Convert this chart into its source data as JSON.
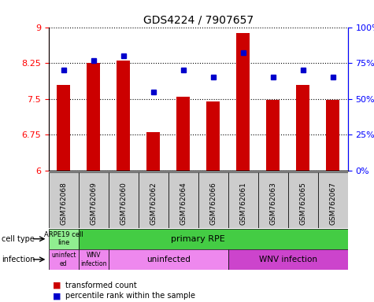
{
  "title": "GDS4224 / 7907657",
  "samples": [
    "GSM762068",
    "GSM762069",
    "GSM762060",
    "GSM762062",
    "GSM762064",
    "GSM762066",
    "GSM762061",
    "GSM762063",
    "GSM762065",
    "GSM762067"
  ],
  "transformed_count": [
    7.8,
    8.25,
    8.3,
    6.8,
    7.55,
    7.45,
    8.88,
    7.48,
    7.8,
    7.48
  ],
  "percentile_rank": [
    70,
    77,
    80,
    55,
    70,
    65,
    82,
    65,
    70,
    65
  ],
  "ylim_left": [
    6,
    9
  ],
  "ylim_right": [
    0,
    100
  ],
  "yticks_left": [
    6,
    6.75,
    7.5,
    8.25,
    9
  ],
  "ytick_labels_left": [
    "6",
    "6.75",
    "7.5",
    "8.25",
    "9"
  ],
  "yticks_right": [
    0,
    25,
    50,
    75,
    100
  ],
  "ytick_labels_right": [
    "0%",
    "25%",
    "50%",
    "75%",
    "100%"
  ],
  "bar_color": "#cc0000",
  "dot_color": "#0000cc",
  "bar_bottom": 6,
  "cell_type_arpe_color": "#90ee90",
  "cell_type_primary_color": "#44cc44",
  "infection_light_color": "#ee88ee",
  "infection_dark_color": "#cc44cc",
  "xtick_bg_color": "#cccccc"
}
